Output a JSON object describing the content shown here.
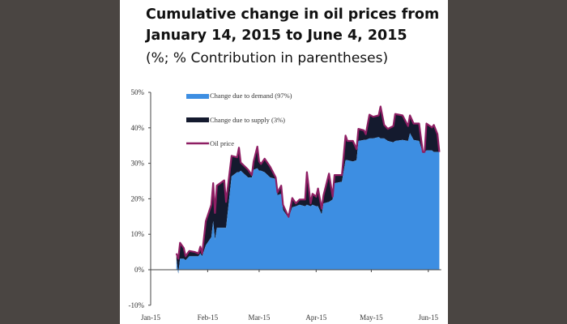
{
  "chart_data": {
    "type": "area",
    "title": "Cumulative change in oil prices from",
    "title_line2": "January 14, 2015 to June 4, 2015",
    "subtitle": "(%; % Contribution in parentheses)",
    "xlabel": "",
    "ylabel": "",
    "x_unit": "day of year 2015",
    "xlim": [
      0,
      158
    ],
    "ylim": [
      -10,
      50
    ],
    "y_ticks": [
      -10,
      0,
      10,
      20,
      30,
      40,
      50
    ],
    "y_tick_labels": [
      "-10%",
      "0%",
      "10%",
      "20%",
      "30%",
      "40%",
      "50%"
    ],
    "x_ticks": [
      0,
      31,
      59,
      90,
      120,
      151
    ],
    "x_tick_labels": [
      "Jan-15",
      "Feb-15",
      "Mar-15",
      "Apr-15",
      "May-15",
      "Jun-15"
    ],
    "grid": false,
    "legend_placement": "top-left",
    "x": [
      14,
      15,
      16,
      18,
      19,
      21,
      24,
      26,
      27,
      28,
      30,
      33,
      34,
      35,
      36,
      40,
      41,
      44,
      47,
      48,
      49,
      53,
      55,
      56,
      58,
      59,
      60,
      62,
      65,
      68,
      69,
      71,
      72,
      74,
      75,
      77,
      79,
      81,
      84,
      85,
      87,
      88,
      90,
      91,
      93,
      94,
      97,
      99,
      100,
      104,
      106,
      107,
      110,
      112,
      113,
      116,
      117,
      119,
      121,
      124,
      125,
      127,
      129,
      132,
      133,
      137,
      140,
      141,
      143,
      146,
      148,
      149,
      150,
      153,
      154,
      156,
      157
    ],
    "series": [
      {
        "name": "Change due to demand (97%)",
        "kind": "area",
        "color": "#3d8ee2",
        "values": [
          3.1,
          -1.1,
          3.1,
          3.1,
          2.7,
          3.8,
          3.8,
          3.8,
          4.6,
          3.8,
          6.9,
          9.2,
          13.7,
          8.4,
          11.8,
          11.8,
          11.8,
          26.3,
          27.5,
          27.5,
          27.9,
          26.0,
          26.0,
          28.2,
          28.6,
          27.9,
          27.9,
          27.5,
          26.0,
          25.6,
          21.0,
          21.4,
          16.8,
          15.3,
          14.5,
          17.6,
          17.9,
          18.3,
          17.9,
          18.3,
          17.9,
          18.3,
          17.9,
          17.9,
          15.6,
          18.7,
          19.1,
          19.8,
          24.4,
          24.8,
          30.9,
          30.9,
          30.5,
          30.9,
          36.3,
          36.6,
          36.6,
          37.0,
          37.0,
          37.4,
          37.0,
          37.0,
          36.3,
          35.9,
          36.3,
          36.6,
          36.3,
          38.5,
          36.6,
          36.3,
          32.8,
          33.2,
          33.6,
          33.6,
          33.2,
          33.2,
          33.2
        ]
      },
      {
        "name": "Change due to supply (3%)",
        "kind": "area",
        "color": "#141a2e",
        "note": "stacked between demand and oil price"
      },
      {
        "name": "Oil price",
        "kind": "line",
        "color": "#8e1e63",
        "values": [
          4.6,
          3.1,
          7.6,
          6.1,
          3.8,
          5.3,
          5.0,
          4.6,
          6.5,
          4.6,
          13.7,
          18.3,
          24.4,
          16.0,
          23.7,
          25.2,
          19.1,
          32.1,
          31.7,
          34.4,
          30.2,
          28.2,
          26.7,
          30.5,
          34.7,
          30.5,
          29.8,
          31.3,
          29.0,
          26.0,
          21.8,
          23.7,
          18.3,
          16.0,
          14.9,
          20.2,
          18.7,
          19.8,
          19.8,
          27.5,
          18.7,
          21.4,
          20.6,
          22.9,
          17.2,
          21.0,
          27.1,
          20.6,
          26.7,
          26.7,
          37.8,
          36.3,
          36.3,
          34.0,
          39.7,
          39.3,
          38.2,
          43.7,
          43.1,
          43.5,
          46.0,
          40.8,
          39.7,
          40.5,
          43.9,
          43.5,
          40.5,
          43.5,
          41.2,
          41.2,
          33.2,
          33.2,
          41.2,
          40.1,
          40.8,
          38.2,
          33.2
        ]
      }
    ]
  }
}
